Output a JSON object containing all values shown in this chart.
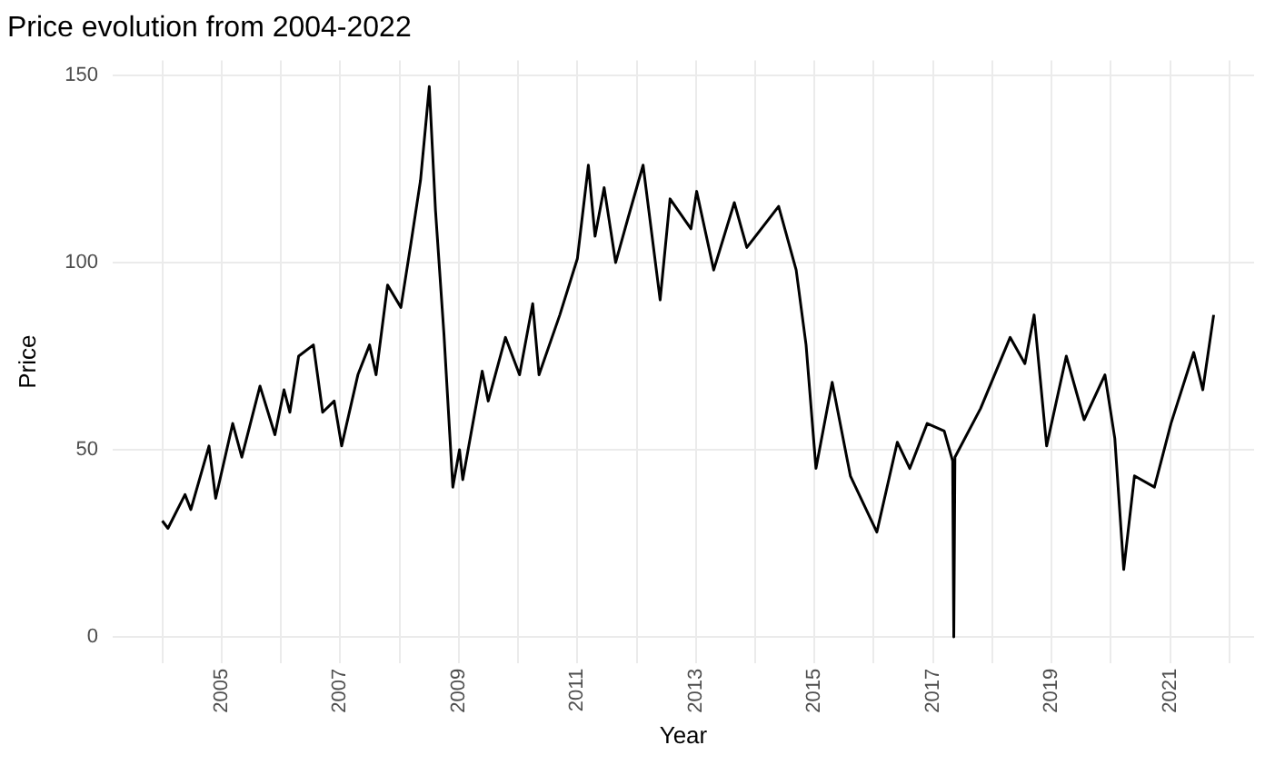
{
  "chart_data": {
    "type": "line",
    "title": "Price evolution from 2004-2022",
    "xlabel": "Year",
    "ylabel": "Price",
    "x": [
      "2004-01-01",
      "2004-02-05",
      "2004-05-20",
      "2004-06-25",
      "2004-10-15",
      "2004-11-25",
      "2005-03-10",
      "2005-05-05",
      "2005-08-25",
      "2005-11-25",
      "2006-01-20",
      "2006-02-25",
      "2006-04-20",
      "2006-07-20",
      "2006-09-15",
      "2006-11-25",
      "2007-01-10",
      "2007-04-20",
      "2007-07-01",
      "2007-08-10",
      "2007-10-20",
      "2008-01-10",
      "2008-03-15",
      "2008-05-10",
      "2008-07-03",
      "2008-08-10",
      "2008-10-01",
      "2008-11-25",
      "2009-01-05",
      "2009-01-25",
      "2009-05-25",
      "2009-07-01",
      "2009-10-15",
      "2010-01-10",
      "2010-04-01",
      "2010-05-10",
      "2010-09-15",
      "2011-01-01",
      "2011-03-10",
      "2011-04-20",
      "2011-06-15",
      "2011-08-25",
      "2011-11-10",
      "2012-02-10",
      "2012-05-25",
      "2012-07-25",
      "2012-12-01",
      "2013-01-05",
      "2013-04-20",
      "2013-08-25",
      "2013-11-10",
      "2014-05-25",
      "2014-09-10",
      "2014-11-10",
      "2015-01-10",
      "2015-04-20",
      "2015-08-10",
      "2016-01-20",
      "2016-05-25",
      "2016-08-10",
      "2016-11-25",
      "2017-03-10",
      "2017-05-01",
      "2017-05-08",
      "2017-05-15",
      "2017-10-20",
      "2018-04-20",
      "2018-07-20",
      "2018-09-15",
      "2018-12-01",
      "2019-04-01",
      "2019-07-20",
      "2019-11-25",
      "2020-01-25",
      "2020-03-20",
      "2020-05-25",
      "2020-09-25",
      "2021-01-05",
      "2021-05-25",
      "2021-07-20",
      "2021-09-25"
    ],
    "values": [
      31,
      29,
      38,
      34,
      51,
      37,
      57,
      48,
      67,
      54,
      66,
      60,
      75,
      78,
      60,
      63,
      51,
      70,
      78,
      70,
      94,
      88,
      106,
      122,
      147,
      114,
      81,
      40,
      50,
      42,
      71,
      63,
      80,
      70,
      89,
      70,
      86,
      101,
      126,
      107,
      120,
      100,
      112,
      126,
      90,
      117,
      109,
      119,
      98,
      116,
      104,
      115,
      98,
      78,
      45,
      68,
      43,
      28,
      52,
      45,
      57,
      55,
      47,
      0,
      48,
      61,
      80,
      73,
      86,
      51,
      75,
      58,
      70,
      53,
      18,
      43,
      40,
      57,
      76,
      66,
      86
    ],
    "color": "#000000",
    "xlim": [
      "2003-03-01",
      "2022-06-01"
    ],
    "xticks": [
      {
        "value": "2004",
        "label": null
      },
      "2005",
      {
        "value": "2006",
        "label": null
      },
      "2007",
      {
        "value": "2008",
        "label": null
      },
      "2009",
      {
        "value": "2010",
        "label": null
      },
      "2011",
      {
        "value": "2012",
        "label": null
      },
      "2013",
      {
        "value": "2014",
        "label": null
      },
      "2015",
      {
        "value": "2016",
        "label": null
      },
      "2017",
      {
        "value": "2018",
        "label": null
      },
      "2019",
      {
        "value": "2020",
        "label": null
      },
      "2021",
      {
        "value": "2022",
        "label": null
      }
    ],
    "ylim": [
      -7,
      154
    ],
    "yticks": [
      0,
      50,
      100,
      150
    ],
    "grid": true
  }
}
